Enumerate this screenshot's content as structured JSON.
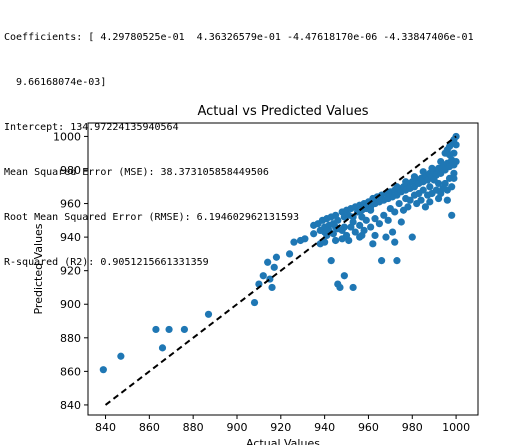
{
  "console": {
    "lines": [
      "Coefficients: [ 4.29780525e-01  4.36326579e-01 -4.47618170e-06 -4.33847406e-01",
      "  9.66168074e-03]",
      "Intercept: 134.97224135940564",
      "Mean Squared Error (MSE): 38.373105858449506",
      "Root Mean Squared Error (RMSE): 6.194602962131593",
      "R-squared (R2): 0.9051215661331359"
    ]
  },
  "chart_data": {
    "type": "scatter",
    "title": "Actual vs Predicted Values",
    "xlabel": "Actual Values",
    "ylabel": "Predicted Values",
    "xlim": [
      832,
      1010
    ],
    "ylim": [
      834,
      1008
    ],
    "xticks": [
      840,
      860,
      880,
      900,
      920,
      940,
      960,
      980,
      1000
    ],
    "yticks": [
      840,
      860,
      880,
      900,
      920,
      940,
      960,
      980,
      1000
    ],
    "grid": false,
    "reference_line": {
      "style": "dashed",
      "color": "#000000",
      "from": [
        840,
        840
      ],
      "to": [
        1000,
        1000
      ]
    },
    "point_color": "#1f77b4",
    "points": [
      [
        839,
        861
      ],
      [
        847,
        869
      ],
      [
        863,
        885
      ],
      [
        866,
        874
      ],
      [
        869,
        885
      ],
      [
        876,
        885
      ],
      [
        887,
        894
      ],
      [
        908,
        901
      ],
      [
        910,
        912
      ],
      [
        912,
        917
      ],
      [
        914,
        925
      ],
      [
        915,
        915
      ],
      [
        916,
        910
      ],
      [
        917,
        922
      ],
      [
        918,
        928
      ],
      [
        924,
        930
      ],
      [
        926,
        937
      ],
      [
        929,
        938
      ],
      [
        931,
        939
      ],
      [
        935,
        942
      ],
      [
        938,
        936
      ],
      [
        940,
        937
      ],
      [
        941,
        941
      ],
      [
        942,
        944
      ],
      [
        943,
        926
      ],
      [
        945,
        938
      ],
      [
        946,
        912
      ],
      [
        947,
        910
      ],
      [
        948,
        939
      ],
      [
        949,
        917
      ],
      [
        951,
        938
      ],
      [
        953,
        910
      ],
      [
        956,
        940
      ],
      [
        957,
        941
      ],
      [
        962,
        936
      ],
      [
        963,
        941
      ],
      [
        966,
        926
      ],
      [
        968,
        940
      ],
      [
        971,
        943
      ],
      [
        972,
        937
      ],
      [
        973,
        926
      ],
      [
        975,
        949
      ],
      [
        980,
        940
      ],
      [
        986,
        958
      ],
      [
        988,
        961
      ],
      [
        992,
        963
      ],
      [
        996,
        968
      ],
      [
        998,
        953
      ],
      [
        999,
        978
      ],
      [
        935,
        947
      ],
      [
        937,
        948
      ],
      [
        939,
        950
      ],
      [
        940,
        946
      ],
      [
        941,
        951
      ],
      [
        943,
        952
      ],
      [
        944,
        948
      ],
      [
        945,
        953
      ],
      [
        946,
        950
      ],
      [
        948,
        955
      ],
      [
        949,
        952
      ],
      [
        950,
        956
      ],
      [
        951,
        953
      ],
      [
        952,
        957
      ],
      [
        953,
        952
      ],
      [
        954,
        958
      ],
      [
        955,
        955
      ],
      [
        956,
        959
      ],
      [
        957,
        956
      ],
      [
        958,
        960
      ],
      [
        959,
        957
      ],
      [
        960,
        961
      ],
      [
        961,
        958
      ],
      [
        962,
        963
      ],
      [
        963,
        960
      ],
      [
        964,
        964
      ],
      [
        965,
        961
      ],
      [
        966,
        965
      ],
      [
        967,
        962
      ],
      [
        968,
        966
      ],
      [
        969,
        963
      ],
      [
        970,
        967
      ],
      [
        971,
        964
      ],
      [
        972,
        968
      ],
      [
        973,
        965
      ],
      [
        974,
        969
      ],
      [
        975,
        967
      ],
      [
        976,
        970
      ],
      [
        977,
        968
      ],
      [
        978,
        972
      ],
      [
        979,
        969
      ],
      [
        980,
        973
      ],
      [
        981,
        970
      ],
      [
        982,
        974
      ],
      [
        983,
        972
      ],
      [
        984,
        975
      ],
      [
        985,
        973
      ],
      [
        986,
        977
      ],
      [
        987,
        974
      ],
      [
        988,
        978
      ],
      [
        989,
        976
      ],
      [
        990,
        979
      ],
      [
        991,
        977
      ],
      [
        992,
        981
      ],
      [
        993,
        978
      ],
      [
        994,
        982
      ],
      [
        995,
        980
      ],
      [
        996,
        984
      ],
      [
        997,
        982
      ],
      [
        998,
        986
      ],
      [
        999,
        990
      ],
      [
        1000,
        995
      ],
      [
        1000,
        1000
      ],
      [
        1000,
        985
      ],
      [
        999,
        975
      ],
      [
        999,
        983
      ],
      [
        998,
        970
      ],
      [
        997,
        975
      ],
      [
        996,
        962
      ],
      [
        995,
        972
      ],
      [
        994,
        969
      ],
      [
        993,
        966
      ],
      [
        992,
        972
      ],
      [
        991,
        968
      ],
      [
        990,
        974
      ],
      [
        989,
        966
      ],
      [
        988,
        970
      ],
      [
        987,
        965
      ],
      [
        985,
        968
      ],
      [
        984,
        962
      ],
      [
        983,
        966
      ],
      [
        982,
        960
      ],
      [
        981,
        965
      ],
      [
        979,
        962
      ],
      [
        978,
        958
      ],
      [
        977,
        963
      ],
      [
        976,
        956
      ],
      [
        974,
        960
      ],
      [
        972,
        955
      ],
      [
        970,
        957
      ],
      [
        969,
        950
      ],
      [
        967,
        953
      ],
      [
        965,
        948
      ],
      [
        963,
        951
      ],
      [
        961,
        946
      ],
      [
        959,
        950
      ],
      [
        958,
        944
      ],
      [
        956,
        947
      ],
      [
        954,
        943
      ],
      [
        952,
        946
      ],
      [
        950,
        941
      ],
      [
        948,
        944
      ],
      [
        946,
        945
      ],
      [
        944,
        942
      ],
      [
        942,
        947
      ],
      [
        940,
        943
      ],
      [
        938,
        944
      ],
      [
        995,
        990
      ],
      [
        996,
        992
      ],
      [
        997,
        994
      ],
      [
        998,
        996
      ],
      [
        999,
        998
      ],
      [
        997,
        989
      ],
      [
        993,
        985
      ],
      [
        989,
        981
      ],
      [
        985,
        979
      ],
      [
        981,
        976
      ],
      [
        977,
        973
      ],
      [
        973,
        970
      ],
      [
        969,
        966
      ],
      [
        965,
        962
      ],
      [
        961,
        956
      ],
      [
        957,
        952
      ],
      [
        953,
        949
      ],
      [
        949,
        946
      ],
      [
        945,
        946
      ],
      [
        941,
        944
      ]
    ]
  }
}
